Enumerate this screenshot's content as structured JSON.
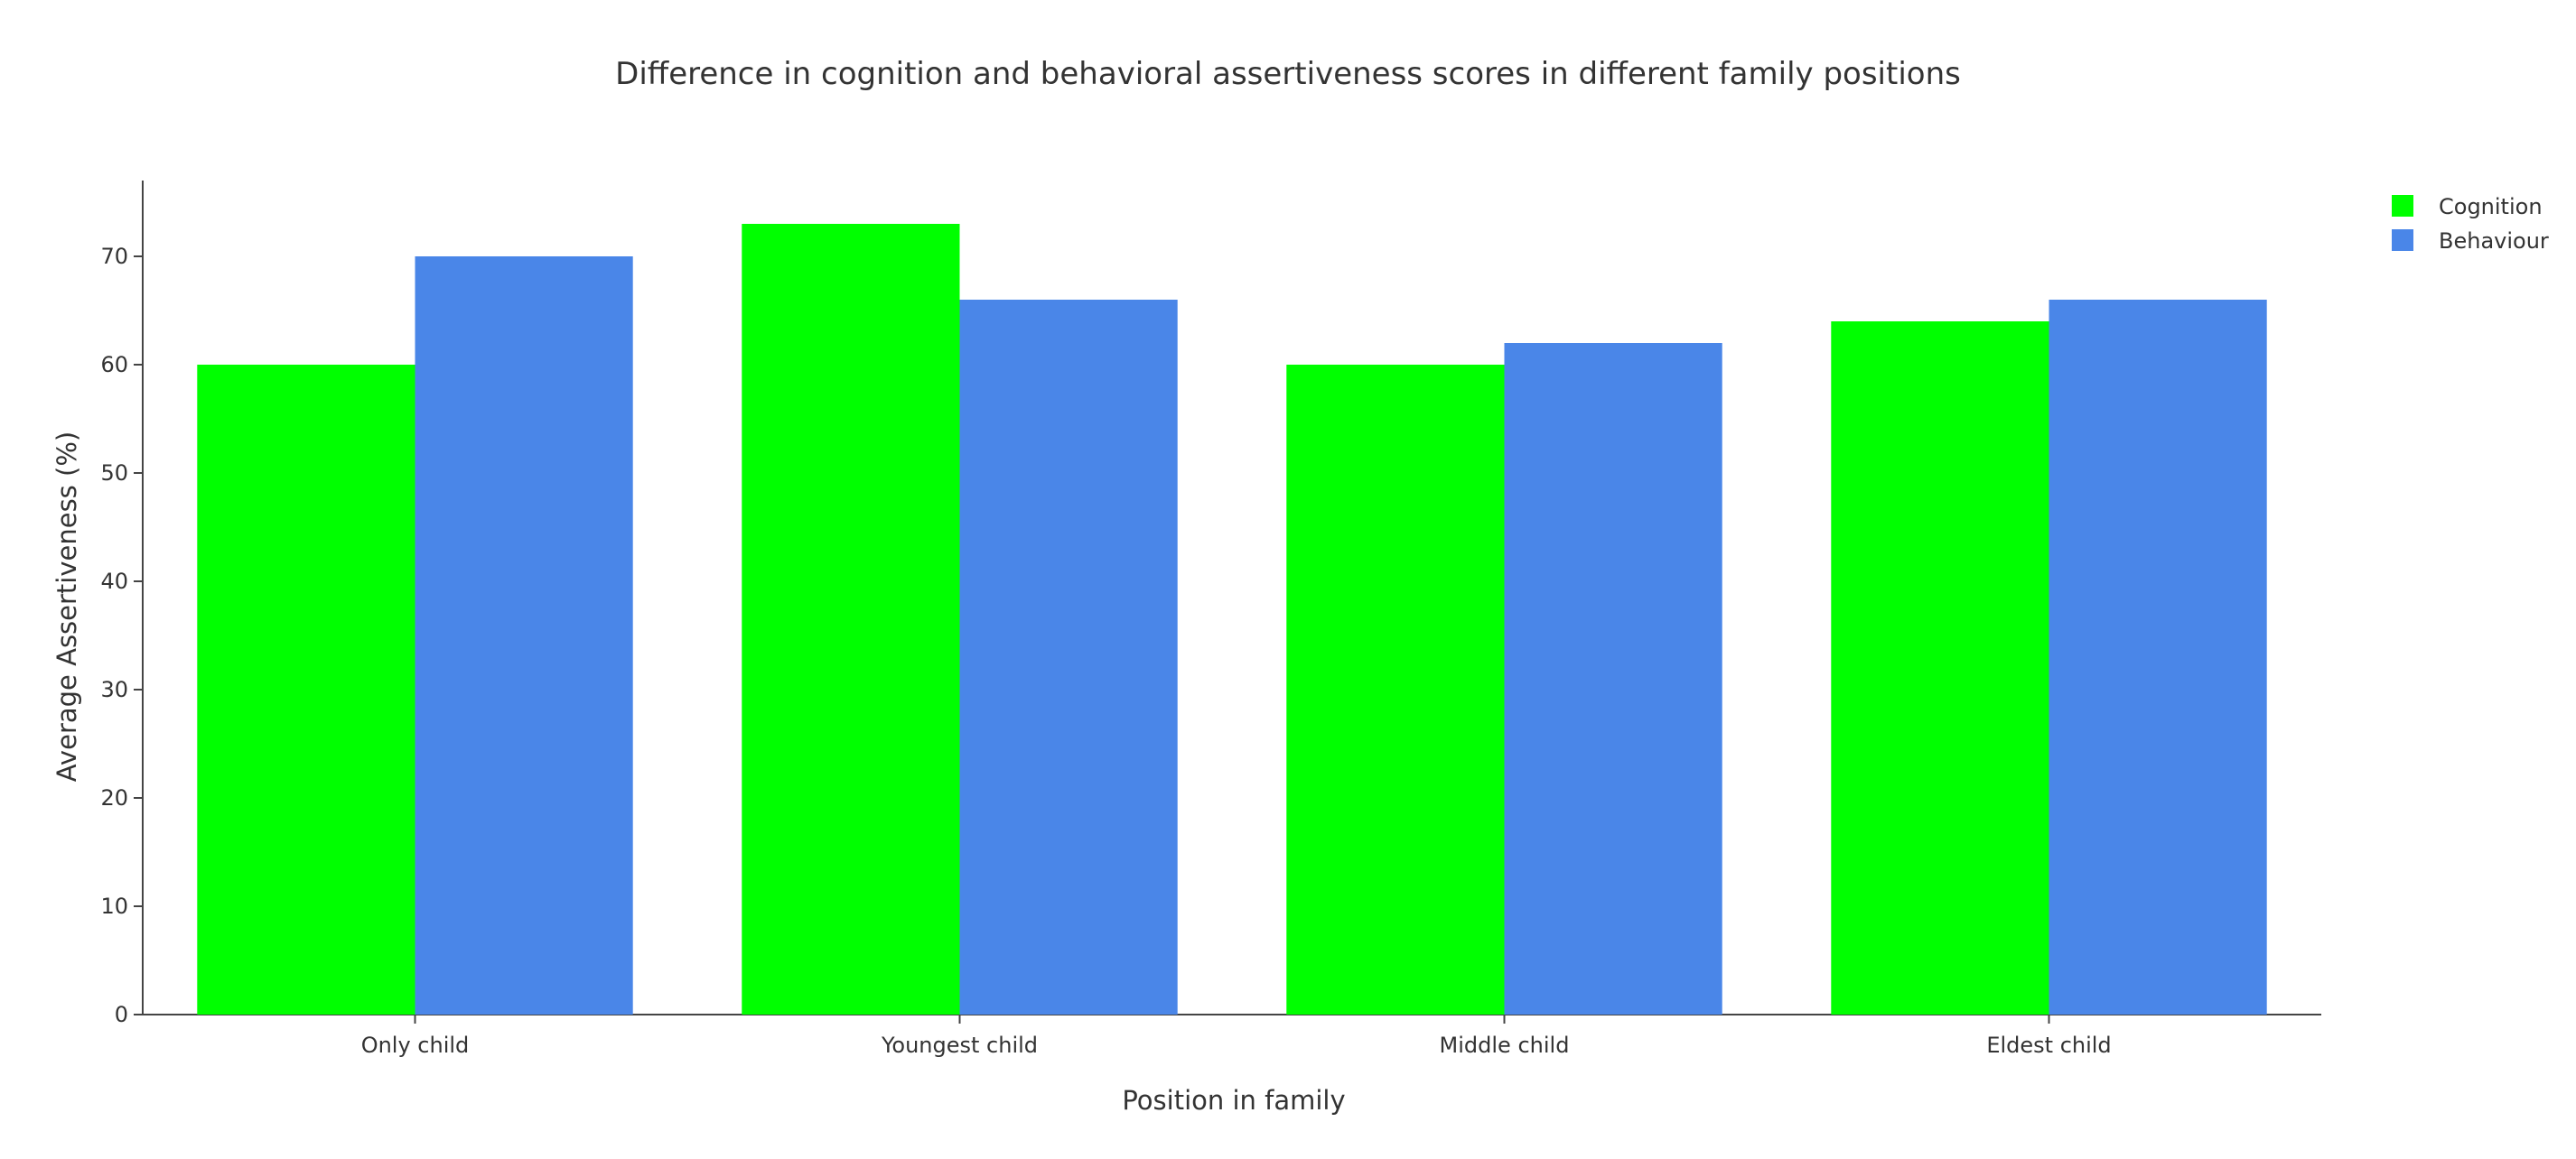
{
  "chart_data": {
    "type": "bar",
    "title": "Difference in cognition and behavioral assertiveness scores in different family positions",
    "xlabel": "Position in family",
    "ylabel": "Average Assertiveness (%)",
    "categories": [
      "Only child",
      "Youngest child",
      "Middle child",
      "Eldest child"
    ],
    "series": [
      {
        "name": "Cognition",
        "color": "#00ff00",
        "values": [
          60,
          73,
          60,
          64
        ]
      },
      {
        "name": "Behaviour",
        "color": "#4a86e8",
        "values": [
          70,
          66,
          62,
          66
        ]
      }
    ],
    "ylim": [
      0,
      77
    ],
    "yticks": [
      0,
      10,
      20,
      30,
      40,
      50,
      60,
      70
    ],
    "grid": false,
    "legend_position": "top-right"
  }
}
